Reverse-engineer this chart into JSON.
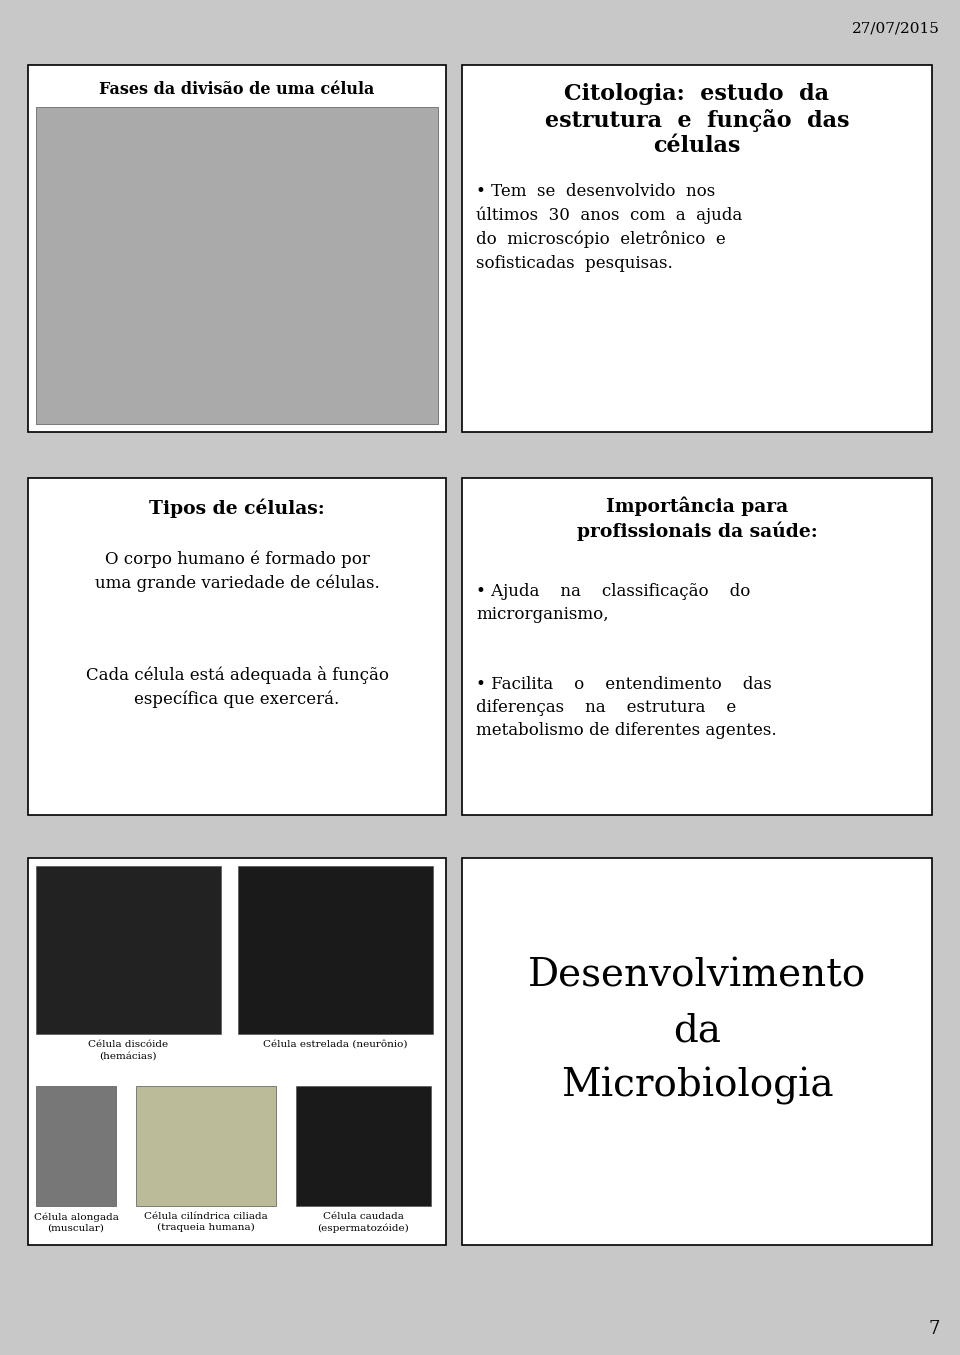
{
  "bg_color": "#c8c8c8",
  "box_bg": "#ffffff",
  "date_text": "27/07/2015",
  "page_number": "7",
  "box1_title": "Fases da divisão de uma célula",
  "box2_title_bold": "Citologia",
  "box2_title_colon": ":",
  "box2_title_rest": "  estudo  da\nestrutura  e  função  das\ncélulas",
  "box2_bullet": "• Tem  se  desenvolvido  nos\núltimos  30  anos  com  a  ajuda\ndo  microscópio  eletrônico  e\nsofisticadas  pesquisas.",
  "box3_title": "Tipos de células:",
  "box3_text1": "O corpo humano é formado por\numa grande variedade de células.",
  "box3_text2": "Cada célula está adequada à função\nespecífica que exercerá.",
  "box4_title": "Importância para\nprofissionais da saúde:",
  "box4_bullet1_line1": "• Ajuda    na    classificação    do",
  "box4_bullet1_line2": "microrganismo,",
  "box4_bullet2_line1": "• Facilita    o    entendimento    das",
  "box4_bullet2_line2": "diferenças    na    estrutura    e",
  "box4_bullet2_line3": "metabolismo de diferentes agentes.",
  "box5_labels": {
    "hemacia": "Célula discóide\n(hemácias)",
    "neuronio": "Célula estrelada (neurônio)",
    "muscular": "Célula alongada\n(muscular)",
    "traqueia": "Célula cilíndrica ciliada\n(traqueia humana)",
    "esperma": "Célula caudada\n(espermatozóide)"
  },
  "box6_text": "Desenvolvimento\nda\nMicrobiologia",
  "border_color": "#000000",
  "text_color": "#000000"
}
